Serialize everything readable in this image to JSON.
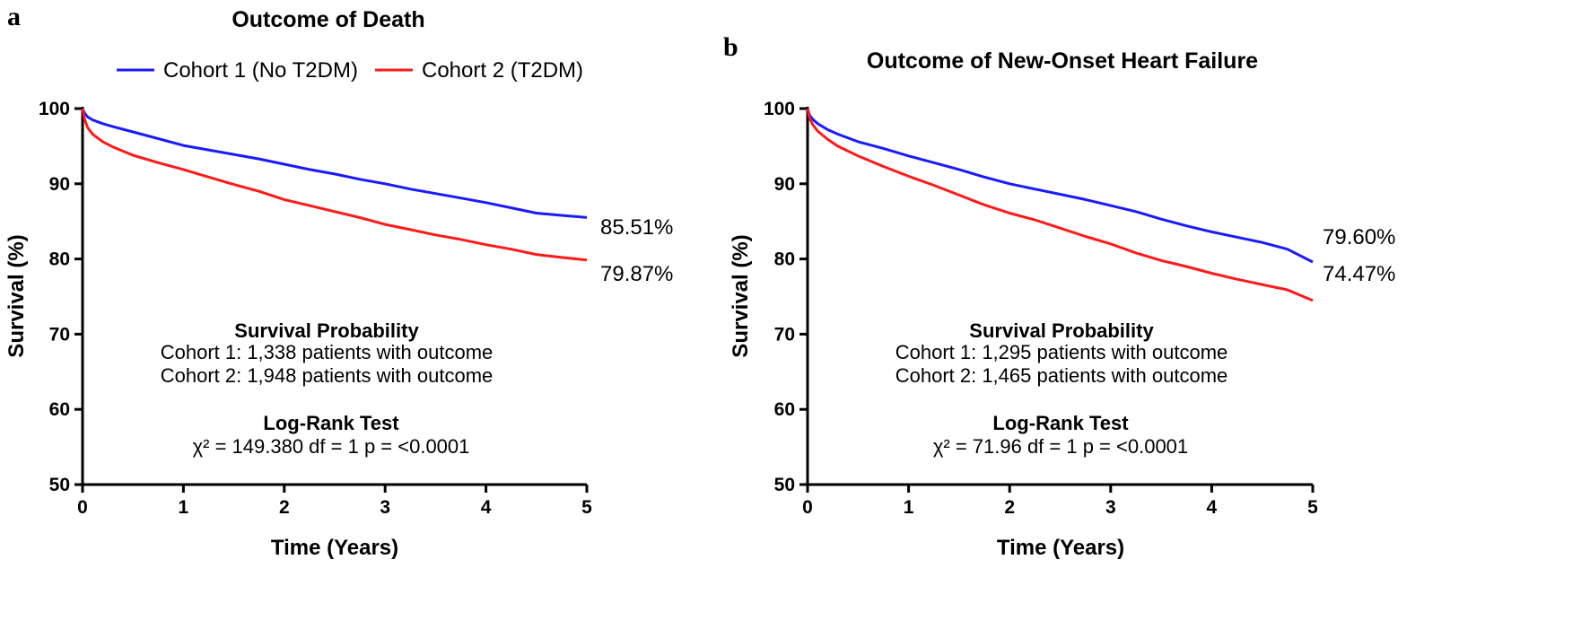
{
  "legend": {
    "entries": [
      {
        "name": "Cohort 1 (No T2DM)",
        "color": "#1a1aff"
      },
      {
        "name": "Cohort 2 (T2DM)",
        "color": "#ff1a1a"
      }
    ]
  },
  "chart_data": [
    {
      "panel": "a",
      "type": "line",
      "title": "Outcome of Death",
      "xlabel": "Time (Years)",
      "ylabel": "Survival (%)",
      "xlim": [
        0,
        5
      ],
      "ylim": [
        50,
        100
      ],
      "xticks": [
        "0",
        "1",
        "2",
        "3",
        "4",
        "5"
      ],
      "yticks": [
        "50",
        "60",
        "70",
        "80",
        "90",
        "100"
      ],
      "grid": false,
      "legend_position": "top",
      "series": [
        {
          "name": "Cohort 1 (No T2DM)",
          "color": "#1a1aff",
          "end_label": "85.51%",
          "x": [
            0,
            0.02,
            0.05,
            0.1,
            0.2,
            0.3,
            0.5,
            0.75,
            1,
            1.25,
            1.5,
            1.75,
            2,
            2.25,
            2.5,
            2.75,
            3,
            3.25,
            3.5,
            3.75,
            4,
            4.25,
            4.5,
            4.75,
            5
          ],
          "y": [
            100,
            99.4,
            98.9,
            98.5,
            98.0,
            97.6,
            96.9,
            96.0,
            95.1,
            94.5,
            93.9,
            93.3,
            92.6,
            91.9,
            91.3,
            90.6,
            90.0,
            89.3,
            88.7,
            88.1,
            87.5,
            86.8,
            86.1,
            85.8,
            85.51
          ]
        },
        {
          "name": "Cohort 2 (T2DM)",
          "color": "#ff1a1a",
          "end_label": "79.87%",
          "x": [
            0,
            0.02,
            0.05,
            0.1,
            0.2,
            0.3,
            0.5,
            0.75,
            1,
            1.25,
            1.5,
            1.75,
            2,
            2.25,
            2.5,
            2.75,
            3,
            3.25,
            3.5,
            3.75,
            4,
            4.25,
            4.5,
            4.75,
            5
          ],
          "y": [
            100,
            98.6,
            97.5,
            96.6,
            95.6,
            94.9,
            93.8,
            92.8,
            91.9,
            90.9,
            89.9,
            89.0,
            87.9,
            87.1,
            86.3,
            85.5,
            84.6,
            83.9,
            83.2,
            82.6,
            81.9,
            81.3,
            80.6,
            80.2,
            79.87
          ]
        }
      ],
      "annotation": {
        "heading": "Survival Probability",
        "line1": "Cohort 1: 1,338 patients with outcome",
        "line2": "Cohort 2: 1,948 patients with outcome",
        "test_heading": "Log-Rank Test",
        "test_line": "χ² = 149.380  df = 1  p = <0.0001"
      }
    },
    {
      "panel": "b",
      "type": "line",
      "title": "Outcome of New-Onset Heart Failure",
      "xlabel": "Time (Years)",
      "ylabel": "Survival (%)",
      "xlim": [
        0,
        5
      ],
      "ylim": [
        50,
        100
      ],
      "xticks": [
        "0",
        "1",
        "2",
        "3",
        "4",
        "5"
      ],
      "yticks": [
        "50",
        "60",
        "70",
        "80",
        "90",
        "100"
      ],
      "grid": false,
      "series": [
        {
          "name": "Cohort 1 (No T2DM)",
          "color": "#1a1aff",
          "end_label": "79.60%",
          "x": [
            0,
            0.02,
            0.05,
            0.1,
            0.2,
            0.3,
            0.5,
            0.75,
            1,
            1.25,
            1.5,
            1.75,
            2,
            2.25,
            2.5,
            2.75,
            3,
            3.25,
            3.5,
            3.75,
            4,
            4.25,
            4.5,
            4.75,
            5
          ],
          "y": [
            100,
            99.1,
            98.6,
            98.0,
            97.2,
            96.6,
            95.6,
            94.7,
            93.7,
            92.8,
            91.9,
            90.9,
            90.0,
            89.3,
            88.6,
            87.9,
            87.1,
            86.3,
            85.3,
            84.4,
            83.6,
            82.9,
            82.2,
            81.3,
            79.6
          ]
        },
        {
          "name": "Cohort 2 (T2DM)",
          "color": "#ff1a1a",
          "end_label": "74.47%",
          "x": [
            0,
            0.02,
            0.05,
            0.1,
            0.2,
            0.3,
            0.5,
            0.75,
            1,
            1.25,
            1.5,
            1.75,
            2,
            2.25,
            2.5,
            2.75,
            3,
            3.25,
            3.5,
            3.75,
            4,
            4.25,
            4.5,
            4.75,
            5
          ],
          "y": [
            100,
            98.7,
            97.9,
            97.0,
            95.9,
            95.0,
            93.7,
            92.3,
            91.0,
            89.8,
            88.5,
            87.2,
            86.1,
            85.2,
            84.1,
            83.0,
            82.0,
            80.8,
            79.8,
            79.0,
            78.1,
            77.3,
            76.6,
            75.9,
            74.47
          ]
        }
      ],
      "annotation": {
        "heading": "Survival Probability",
        "line1": "Cohort 1: 1,295 patients with outcome",
        "line2": "Cohort 2: 1,465 patients with outcome",
        "test_heading": "Log-Rank Test",
        "test_line": "χ² = 71.96  df = 1  p = <0.0001"
      }
    }
  ]
}
